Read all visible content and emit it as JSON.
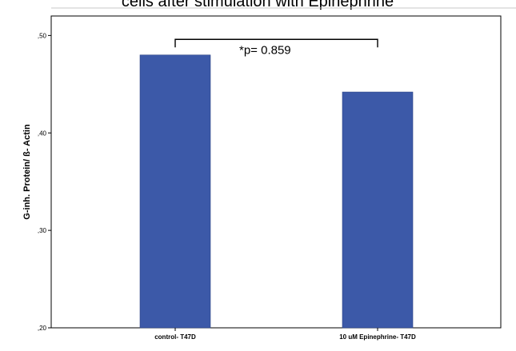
{
  "chart_data": {
    "type": "bar",
    "title": "cells after stimulation with Epinephrine",
    "xlabel": "",
    "ylabel": "G-inh. Protein/ ß- Actin",
    "categories": [
      "control- T47D",
      "10 uM Epinephrine- T47D"
    ],
    "values": [
      0.48,
      0.442
    ],
    "ylim": [
      0.2,
      0.52
    ],
    "yticks": [
      0.2,
      0.3,
      0.4,
      0.5
    ],
    "ytick_labels": [
      ",20",
      ",30",
      ",40",
      ",50"
    ],
    "bar_color": "#3c59a8",
    "grid": false,
    "annotations": [
      {
        "text": "*p= 0.859",
        "type": "significance-bracket",
        "from_category": 0,
        "to_category": 1,
        "y": 0.496
      }
    ]
  }
}
